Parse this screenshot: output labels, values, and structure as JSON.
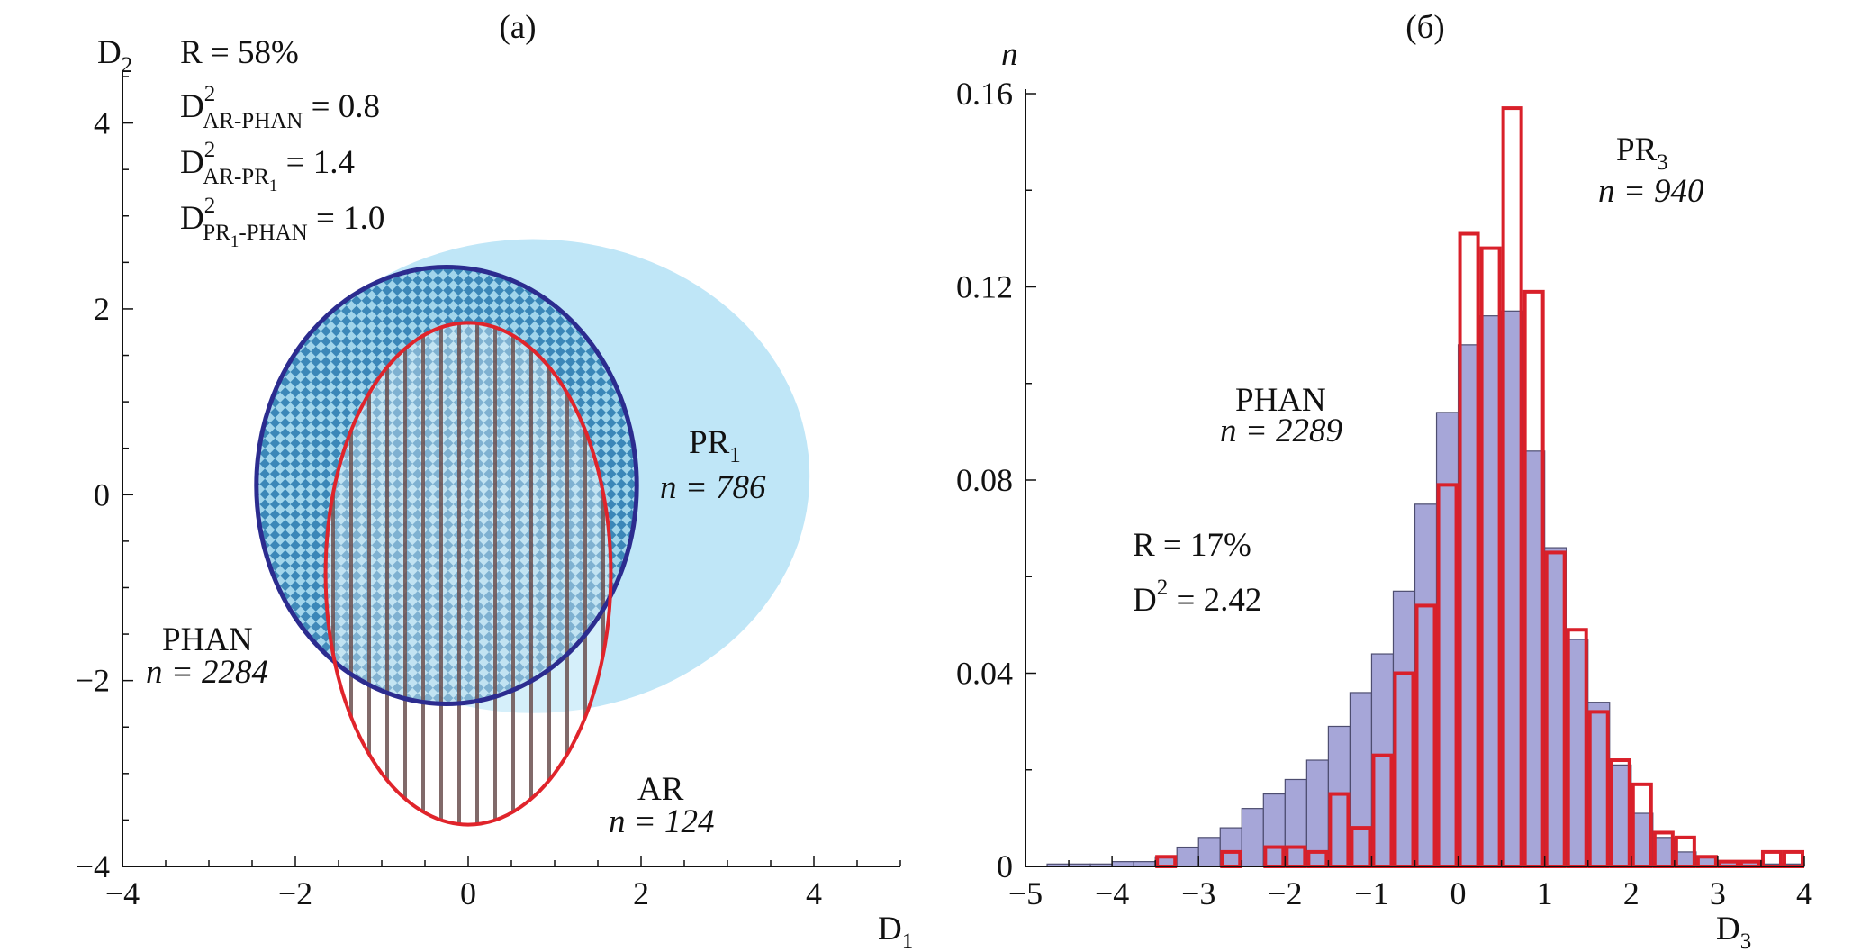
{
  "chart_data": [
    {
      "type": "scatter",
      "panel_label": "(a)",
      "xlabel": "D",
      "xlabel_sub": "1",
      "ylabel": "D",
      "ylabel_sub": "2",
      "xlim": [
        -4,
        5
      ],
      "ylim": [
        -4,
        4.5
      ],
      "xticks": [
        "−4",
        "−2",
        "0",
        "2",
        "4"
      ],
      "xtick_values": [
        -4,
        -2,
        0,
        2,
        4
      ],
      "yticks": [
        "4",
        "2",
        "0",
        "−2",
        "−4"
      ],
      "ytick_values": [
        4,
        2,
        0,
        -2,
        -4
      ],
      "groups": [
        {
          "name": "PR",
          "name_sub": "1",
          "n_label": "n = 786",
          "cx": 0.75,
          "cy": 0.2,
          "rx": 3.2,
          "ry": 2.55,
          "color": "#bfe6f7"
        },
        {
          "name": "PHAN",
          "n_label": "n = 2284",
          "cx": -0.25,
          "cy": 0.1,
          "rx": 2.2,
          "ry": 2.35,
          "color": "#2c2c8f"
        },
        {
          "name": "AR",
          "n_label": "n = 124",
          "cx": 0.0,
          "cy": -0.85,
          "rx": 1.65,
          "ry": 2.7,
          "color": "#e0242b"
        }
      ],
      "annotations": {
        "r": "R = 58%",
        "d1_main": "D",
        "d1_sup": "2",
        "d1_sub": "AR-PHAN",
        "d1_val": " = 0.8",
        "d2_main": "D",
        "d2_sup": "2",
        "d2_sub": "AR-PR",
        "d2_subsub": "1",
        "d2_val": " = 1.4",
        "d3_main": "D",
        "d3_sup": "2",
        "d3_sub_a": "PR",
        "d3_subsub": "1",
        "d3_sub_b": "-PHAN",
        "d3_val": " = 1.0"
      }
    },
    {
      "type": "bar",
      "panel_label": "(б)",
      "xlabel": "D",
      "xlabel_sub": "3",
      "ylabel": "n",
      "xlim": [
        -5,
        4
      ],
      "ylim": [
        0,
        0.16
      ],
      "xticks": [
        "−5",
        "−4",
        "−3",
        "−2",
        "−1",
        "0",
        "1",
        "2",
        "3",
        "4"
      ],
      "xtick_values": [
        -5,
        -4,
        -3,
        -2,
        -1,
        0,
        1,
        2,
        3,
        4
      ],
      "yticks": [
        "0",
        "0.04",
        "0.08",
        "0.12",
        "0.16"
      ],
      "ytick_values": [
        0,
        0.04,
        0.08,
        0.12,
        0.16
      ],
      "bin_width": 0.25,
      "series": [
        {
          "name": "PHAN",
          "n_label": "n = 2289",
          "style": "filled",
          "color": "#a6a6d8",
          "bins_start": [
            -4.75,
            -4.5,
            -4.25,
            -4.0,
            -3.75,
            -3.5,
            -3.25,
            -3.0,
            -2.75,
            -2.5,
            -2.25,
            -2.0,
            -1.75,
            -1.5,
            -1.25,
            -1.0,
            -0.75,
            -0.5,
            -0.25,
            0.0,
            0.25,
            0.5,
            0.75,
            1.0,
            1.25,
            1.5,
            1.75,
            2.0,
            2.25,
            2.5,
            2.75,
            3.0,
            3.25,
            3.5,
            3.75
          ],
          "values": [
            0.0005,
            0.0005,
            0.0005,
            0.001,
            0.001,
            0.002,
            0.004,
            0.006,
            0.008,
            0.012,
            0.015,
            0.018,
            0.022,
            0.029,
            0.036,
            0.044,
            0.057,
            0.075,
            0.094,
            0.108,
            0.114,
            0.115,
            0.086,
            0.066,
            0.047,
            0.034,
            0.021,
            0.011,
            0.006,
            0.003,
            0.002,
            0.001,
            0.001,
            0.0005,
            0.0005
          ]
        },
        {
          "name": "PR",
          "name_sub": "3",
          "n_label": "n = 940",
          "style": "outline",
          "color": "#d9202a",
          "bins_start": [
            -3.5,
            -3.25,
            -3.0,
            -2.75,
            -2.5,
            -2.25,
            -2.0,
            -1.75,
            -1.5,
            -1.25,
            -1.0,
            -0.75,
            -0.5,
            -0.25,
            0.0,
            0.25,
            0.5,
            0.75,
            1.0,
            1.25,
            1.5,
            1.75,
            2.0,
            2.25,
            2.5,
            2.75,
            3.0,
            3.25,
            3.5,
            3.75
          ],
          "values": [
            0.002,
            0.0,
            0.0,
            0.003,
            0.0,
            0.004,
            0.004,
            0.003,
            0.015,
            0.008,
            0.023,
            0.04,
            0.054,
            0.079,
            0.131,
            0.128,
            0.157,
            0.119,
            0.065,
            0.049,
            0.032,
            0.022,
            0.017,
            0.007,
            0.006,
            0.002,
            0.001,
            0.001,
            0.003,
            0.003
          ]
        }
      ],
      "annotations": {
        "r": "R = 17%",
        "d_main": "D",
        "d_sup": "2",
        "d_val": " = 2.42"
      }
    }
  ]
}
